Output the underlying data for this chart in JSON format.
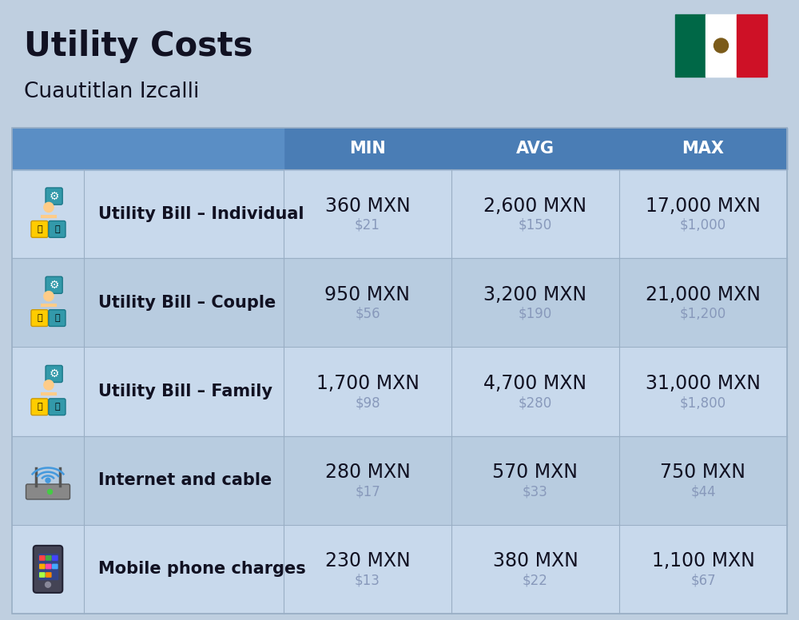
{
  "title": "Utility Costs",
  "subtitle": "Cuautitlan Izcalli",
  "background_color": "#BFCFE0",
  "header_bg_color": "#4A7DB5",
  "header_text_color": "#FFFFFF",
  "row_bg_colors": [
    "#C8D9EC",
    "#B8CCE0"
  ],
  "separator_color": "#9AAFC5",
  "text_color_main": "#111122",
  "text_color_sub": "#8899BB",
  "columns": [
    "MIN",
    "AVG",
    "MAX"
  ],
  "rows": [
    {
      "label": "Utility Bill – Individual",
      "values_mxn": [
        "360 MXN",
        "2,600 MXN",
        "17,000 MXN"
      ],
      "values_usd": [
        "$21",
        "$150",
        "$1,000"
      ]
    },
    {
      "label": "Utility Bill – Couple",
      "values_mxn": [
        "950 MXN",
        "3,200 MXN",
        "21,000 MXN"
      ],
      "values_usd": [
        "$56",
        "$190",
        "$1,200"
      ]
    },
    {
      "label": "Utility Bill – Family",
      "values_mxn": [
        "1,700 MXN",
        "4,700 MXN",
        "31,000 MXN"
      ],
      "values_usd": [
        "$98",
        "$280",
        "$1,800"
      ]
    },
    {
      "label": "Internet and cable",
      "values_mxn": [
        "280 MXN",
        "570 MXN",
        "750 MXN"
      ],
      "values_usd": [
        "$17",
        "$33",
        "$44"
      ]
    },
    {
      "label": "Mobile phone charges",
      "values_mxn": [
        "230 MXN",
        "380 MXN",
        "1,100 MXN"
      ],
      "values_usd": [
        "$13",
        "$22",
        "$67"
      ]
    }
  ],
  "title_fontsize": 30,
  "subtitle_fontsize": 19,
  "header_fontsize": 15,
  "label_fontsize": 15,
  "value_fontsize": 17,
  "subvalue_fontsize": 12,
  "flag_green": "#006847",
  "flag_white": "#FFFFFF",
  "flag_red": "#CE1126",
  "flag_eagle": "#7B5B1A"
}
